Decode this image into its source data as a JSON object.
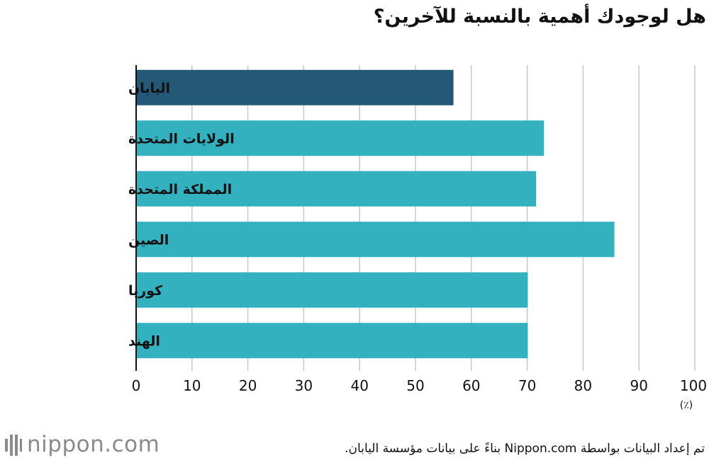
{
  "title": "هل لوجودك أهمية بالنسبة للآخرين؟",
  "chart_data": {
    "type": "bar",
    "orientation": "horizontal",
    "title": "هل لوجودك أهمية بالنسبة للآخرين؟",
    "categories": [
      "اليابان",
      "الولايات المتحدة",
      "المملكة المتحدة",
      "الصين",
      "كوريا",
      "الهند"
    ],
    "values": [
      56.8,
      73.0,
      71.6,
      85.6,
      70.1,
      70.1
    ],
    "colors": [
      "#245877",
      "#34b1bf",
      "#34b1bf",
      "#34b1bf",
      "#34b1bf",
      "#34b1bf"
    ],
    "xlim": [
      0,
      100
    ],
    "xticks": [
      0,
      10,
      20,
      30,
      40,
      50,
      60,
      70,
      80,
      90,
      100
    ],
    "unit": "(٪)",
    "grid": true
  },
  "footer": {
    "logo_text": "nippon.com",
    "source": "تم إعداد البيانات بواسطة Nippon.com بناءً على بيانات مؤسسة اليابان."
  },
  "icons": {
    "logo": "nippon-logo-icon"
  }
}
